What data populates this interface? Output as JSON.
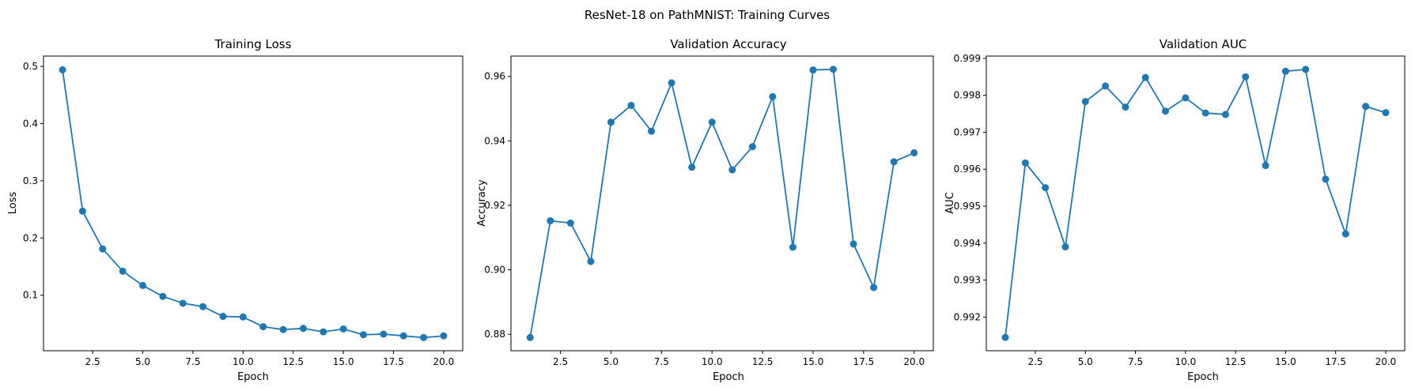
{
  "figure": {
    "suptitle": "ResNet-18 on PathMNIST: Training Curves"
  },
  "colors": {
    "line": "#1f77b4"
  },
  "chart_data": [
    {
      "type": "line",
      "title": "Training Loss",
      "xlabel": "Epoch",
      "ylabel": "Loss",
      "x": [
        1,
        2,
        3,
        4,
        5,
        6,
        7,
        8,
        9,
        10,
        11,
        12,
        13,
        14,
        15,
        16,
        17,
        18,
        19,
        20
      ],
      "values": [
        0.494,
        0.247,
        0.181,
        0.142,
        0.117,
        0.098,
        0.086,
        0.08,
        0.063,
        0.062,
        0.045,
        0.04,
        0.042,
        0.036,
        0.041,
        0.031,
        0.032,
        0.029,
        0.026,
        0.029
      ],
      "xlim": [
        0.05,
        20.95
      ],
      "ylim": [
        0.003,
        0.518
      ],
      "xticks": [
        2.5,
        5.0,
        7.5,
        10.0,
        12.5,
        15.0,
        17.5,
        20.0
      ],
      "xtick_labels": [
        "2.5",
        "5.0",
        "7.5",
        "10.0",
        "12.5",
        "15.0",
        "17.5",
        "20.0"
      ],
      "yticks": [
        0.1,
        0.2,
        0.3,
        0.4,
        0.5
      ],
      "ytick_labels": [
        "0.1",
        "0.2",
        "0.3",
        "0.4",
        "0.5"
      ],
      "marker": "circle",
      "grid": false
    },
    {
      "type": "line",
      "title": "Validation Accuracy",
      "xlabel": "Epoch",
      "ylabel": "Accuracy",
      "x": [
        1,
        2,
        3,
        4,
        5,
        6,
        7,
        8,
        9,
        10,
        11,
        12,
        13,
        14,
        15,
        16,
        17,
        18,
        19,
        20
      ],
      "values": [
        0.879,
        0.9152,
        0.9145,
        0.9026,
        0.9458,
        0.951,
        0.943,
        0.958,
        0.9318,
        0.9458,
        0.931,
        0.9382,
        0.9537,
        0.907,
        0.962,
        0.9622,
        0.908,
        0.8945,
        0.9335,
        0.9363
      ],
      "xlim": [
        0.05,
        20.95
      ],
      "ylim": [
        0.8749,
        0.9663
      ],
      "xticks": [
        2.5,
        5.0,
        7.5,
        10.0,
        12.5,
        15.0,
        17.5,
        20.0
      ],
      "xtick_labels": [
        "2.5",
        "5.0",
        "7.5",
        "10.0",
        "12.5",
        "15.0",
        "17.5",
        "20.0"
      ],
      "yticks": [
        0.88,
        0.9,
        0.92,
        0.94,
        0.96
      ],
      "ytick_labels": [
        "0.88",
        "0.90",
        "0.92",
        "0.94",
        "0.96"
      ],
      "marker": "circle",
      "grid": false
    },
    {
      "type": "line",
      "title": "Validation AUC",
      "xlabel": "Epoch",
      "ylabel": "AUC",
      "x": [
        1,
        2,
        3,
        4,
        5,
        6,
        7,
        8,
        9,
        10,
        11,
        12,
        13,
        14,
        15,
        16,
        17,
        18,
        19,
        20
      ],
      "values": [
        0.99145,
        0.99617,
        0.9955,
        0.9939,
        0.99783,
        0.99825,
        0.99768,
        0.99848,
        0.99757,
        0.99793,
        0.99752,
        0.99748,
        0.9985,
        0.9961,
        0.99865,
        0.9987,
        0.99573,
        0.99425,
        0.9977,
        0.99753
      ],
      "xlim": [
        0.05,
        20.95
      ],
      "ylim": [
        0.99109,
        0.99906
      ],
      "xticks": [
        2.5,
        5.0,
        7.5,
        10.0,
        12.5,
        15.0,
        17.5,
        20.0
      ],
      "xtick_labels": [
        "2.5",
        "5.0",
        "7.5",
        "10.0",
        "12.5",
        "15.0",
        "17.5",
        "20.0"
      ],
      "yticks": [
        0.992,
        0.993,
        0.994,
        0.995,
        0.996,
        0.997,
        0.998,
        0.999
      ],
      "ytick_labels": [
        "0.992",
        "0.993",
        "0.994",
        "0.995",
        "0.996",
        "0.997",
        "0.998",
        "0.999"
      ],
      "marker": "circle",
      "grid": false
    }
  ]
}
